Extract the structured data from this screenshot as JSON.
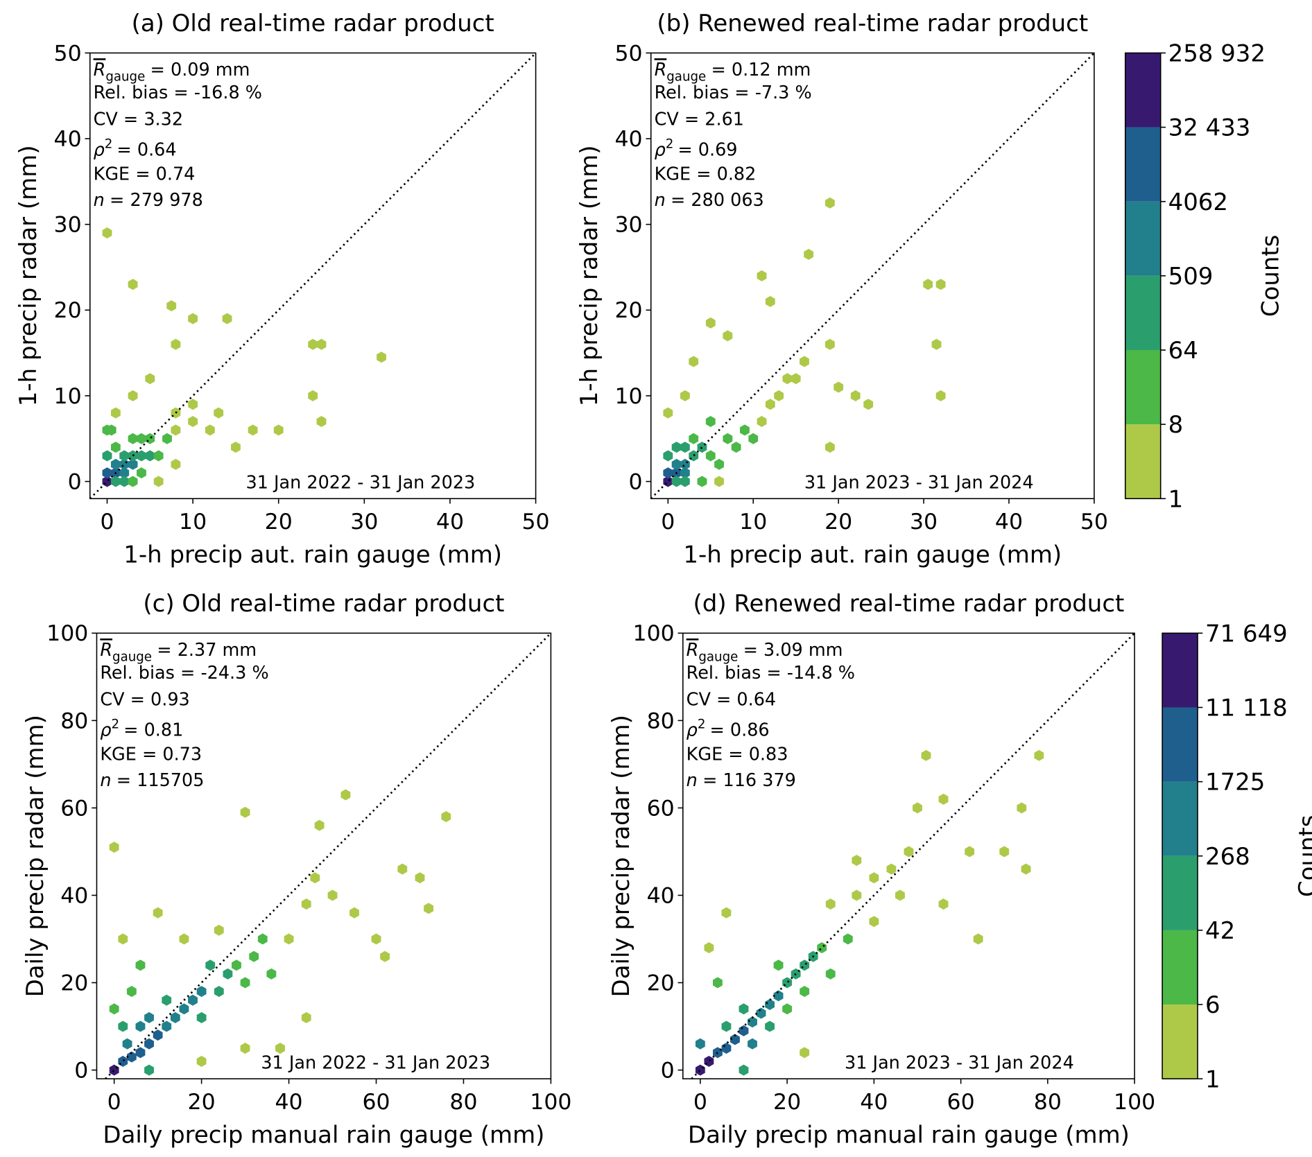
{
  "chart_data": [
    {
      "type": "hexbin",
      "title": "(a) Old real-time radar product",
      "xlabel": "1-h precip aut. rain gauge (mm)",
      "ylabel": "1-h precip radar (mm)",
      "xlim": [
        -2,
        50
      ],
      "ylim": [
        -2,
        50
      ],
      "xticks": [
        0,
        10,
        20,
        30,
        40,
        50
      ],
      "yticks": [
        0,
        10,
        20,
        30,
        40,
        50
      ],
      "period": "31 Jan 2022 - 31 Jan 2023",
      "stats": {
        "r_symbol": "R",
        "r_sub": "gauge",
        "r_value": "= 0.09 mm",
        "rel_bias": "Rel. bias = -16.8 %",
        "cv": "CV = 3.32",
        "rho_symbol": "ρ",
        "rho_sup": "2",
        "rho_value": "= 0.64",
        "kge": "KGE = 0.74",
        "n_symbol": "n",
        "n_value": "= 279 978"
      },
      "x": [
        0,
        1,
        0,
        1,
        2,
        2,
        3,
        0,
        2,
        3,
        4,
        5,
        1,
        2,
        3,
        4,
        6,
        5,
        4,
        0,
        7,
        8,
        8,
        10,
        1,
        3,
        5,
        10,
        12,
        13,
        15,
        17,
        20,
        24,
        25,
        32,
        0,
        3,
        7.5,
        10,
        14,
        8,
        24,
        25,
        6,
        8,
        0.5,
        1,
        3
      ],
      "y": [
        0,
        1,
        1,
        2,
        2,
        1,
        2,
        3,
        3,
        3,
        3,
        3,
        0,
        0,
        0,
        1,
        3,
        5,
        5,
        6,
        5,
        6,
        8,
        9,
        8,
        10,
        12,
        7,
        6,
        8,
        4,
        6,
        6,
        16,
        16,
        14.5,
        29,
        23,
        20.5,
        19,
        19,
        16,
        10,
        7,
        0,
        2,
        6,
        4,
        5
      ],
      "counts": [
        258932,
        30000,
        5000,
        4000,
        3000,
        2000,
        600,
        400,
        300,
        100,
        200,
        100,
        400,
        100,
        20,
        30,
        40,
        30,
        20,
        10,
        10,
        5,
        3,
        2,
        3,
        2,
        2,
        3,
        2,
        2,
        2,
        1,
        1,
        1,
        1,
        1,
        1,
        1,
        1,
        1,
        1,
        1,
        1,
        1,
        5,
        3,
        10,
        60,
        20
      ]
    },
    {
      "type": "hexbin",
      "title": "(b) Renewed real-time radar product",
      "xlabel": "1-h precip aut. rain gauge (mm)",
      "ylabel": "1-h precip radar (mm)",
      "xlim": [
        -2,
        50
      ],
      "ylim": [
        -2,
        50
      ],
      "xticks": [
        0,
        10,
        20,
        30,
        40,
        50
      ],
      "yticks": [
        0,
        10,
        20,
        30,
        40,
        50
      ],
      "period": "31 Jan 2023 - 31 Jan 2024",
      "stats": {
        "r_symbol": "R",
        "r_sub": "gauge",
        "r_value": "= 0.12 mm",
        "rel_bias": "Rel. bias = -7.3 %",
        "cv": "CV = 2.61",
        "rho_symbol": "ρ",
        "rho_sup": "2",
        "rho_value": "= 0.69",
        "kge": "KGE = 0.82",
        "n_symbol": "n",
        "n_value": "= 280 063"
      },
      "x": [
        0,
        1,
        0,
        1,
        2,
        2,
        3,
        0,
        1,
        2,
        3,
        4,
        5,
        1,
        2,
        4,
        6,
        7,
        8,
        9,
        10,
        11,
        12,
        13,
        14,
        0,
        2,
        3,
        5,
        7,
        11,
        12,
        16.5,
        19,
        19,
        20,
        22,
        23.5,
        30.5,
        32,
        31.5,
        32,
        19,
        16,
        6,
        5,
        15
      ],
      "y": [
        0,
        1,
        1,
        2,
        2,
        1,
        3,
        3,
        4,
        4,
        5,
        4,
        3,
        0,
        0,
        0,
        2,
        5,
        4,
        6,
        5,
        7,
        9,
        10,
        12,
        8,
        10,
        14,
        18.5,
        17,
        24,
        21,
        26.5,
        32.5,
        16,
        11,
        10,
        9,
        23,
        23,
        16,
        10,
        4,
        14,
        0,
        7,
        12
      ],
      "counts": [
        258932,
        30000,
        5000,
        3500,
        1500,
        2000,
        300,
        500,
        100,
        80,
        40,
        70,
        30,
        300,
        80,
        10,
        20,
        15,
        20,
        10,
        10,
        5,
        3,
        3,
        2,
        5,
        3,
        2,
        1,
        1,
        1,
        1,
        1,
        1,
        1,
        1,
        1,
        1,
        1,
        1,
        1,
        1,
        1,
        1,
        3,
        20,
        2
      ],
      "colorbar": {
        "label": "Counts",
        "ticks": [
          1,
          8,
          64,
          509,
          4062,
          {
            "value": 32433,
            "label": "32 433"
          },
          {
            "value": 258932,
            "label": "258 932"
          }
        ],
        "colors": [
          "#aec948",
          "#4bb848",
          "#2b9e6e",
          "#21808b",
          "#1f5f8e",
          "#371a70"
        ]
      }
    },
    {
      "type": "hexbin",
      "title": "(c) Old real-time radar product",
      "xlabel": "Daily precip manual rain gauge (mm)",
      "ylabel": "Daily precip radar (mm)",
      "xlim": [
        -4,
        100
      ],
      "ylim": [
        -2,
        100
      ],
      "xticks": [
        0,
        20,
        40,
        60,
        80,
        100
      ],
      "yticks": [
        0,
        20,
        40,
        60,
        80,
        100
      ],
      "period": "31 Jan 2022 - 31 Jan 2023",
      "stats": {
        "r_symbol": "R",
        "r_sub": "gauge",
        "r_value": "= 2.37 mm",
        "rel_bias": "Rel. bias = -24.3 %",
        "cv": "CV = 0.93",
        "rho_symbol": "ρ",
        "rho_sup": "2",
        "rho_value": "= 0.81",
        "kge": "KGE = 0.73",
        "n_symbol": "n",
        "n_value": "= 115705"
      },
      "x": [
        0,
        2,
        4,
        6,
        3,
        8,
        10,
        12,
        14,
        16,
        18,
        20,
        8,
        12,
        6,
        20,
        24,
        26,
        28,
        22,
        30,
        32,
        34,
        36,
        4,
        6,
        2,
        40,
        44,
        46,
        50,
        55,
        60,
        62,
        66,
        70,
        76,
        72,
        53,
        47,
        0,
        30,
        38,
        44,
        10,
        20,
        16,
        24,
        0,
        8,
        2,
        30
      ],
      "y": [
        0,
        2,
        3,
        4,
        6,
        6,
        8,
        10,
        12,
        14,
        16,
        18,
        12,
        16,
        10,
        12,
        18,
        22,
        24,
        24,
        20,
        26,
        30,
        22,
        18,
        24,
        30,
        30,
        38,
        44,
        40,
        36,
        30,
        26,
        46,
        44,
        58,
        37,
        63,
        56,
        51,
        59,
        5,
        12,
        36,
        2,
        30,
        32,
        14,
        0,
        10,
        5
      ],
      "counts": [
        71649,
        11000,
        5000,
        3000,
        1500,
        2000,
        1725,
        1200,
        700,
        500,
        300,
        268,
        300,
        200,
        400,
        150,
        100,
        60,
        40,
        42,
        30,
        20,
        8,
        10,
        20,
        6,
        3,
        3,
        2,
        1,
        1,
        1,
        1,
        1,
        1,
        1,
        1,
        1,
        1,
        1,
        1,
        1,
        2,
        2,
        1,
        5,
        3,
        4,
        6,
        100,
        50,
        2
      ]
    },
    {
      "type": "hexbin",
      "title": "(d) Renewed real-time radar product",
      "xlabel": "Daily precip manual rain gauge (mm)",
      "ylabel": "Daily precip radar (mm)",
      "xlim": [
        -4,
        100
      ],
      "ylim": [
        -2,
        100
      ],
      "xticks": [
        0,
        20,
        40,
        60,
        80,
        100
      ],
      "yticks": [
        0,
        20,
        40,
        60,
        80,
        100
      ],
      "period": "31 Jan 2023 - 31 Jan 2024",
      "stats": {
        "r_symbol": "R",
        "r_sub": "gauge",
        "r_value": "= 3.09 mm",
        "rel_bias": "Rel. bias = -14.8 %",
        "cv": "CV = 0.64",
        "rho_symbol": "ρ",
        "rho_sup": "2",
        "rho_value": "= 0.86",
        "kge": "KGE = 0.83",
        "n_symbol": "n",
        "n_value": "= 116 379"
      },
      "x": [
        0,
        2,
        4,
        6,
        8,
        10,
        12,
        14,
        16,
        18,
        20,
        22,
        24,
        26,
        28,
        6,
        12,
        10,
        16,
        20,
        24,
        18,
        30,
        34,
        36,
        40,
        44,
        50,
        52,
        56,
        48,
        62,
        70,
        74,
        78,
        75,
        64,
        56,
        4,
        6,
        2,
        24,
        40,
        46,
        30,
        36,
        10,
        0
      ],
      "y": [
        0,
        2,
        4,
        5,
        7,
        9,
        11,
        13,
        15,
        17,
        20,
        22,
        24,
        26,
        28,
        10,
        6,
        14,
        10,
        14,
        18,
        24,
        22,
        30,
        40,
        44,
        46,
        60,
        72,
        62,
        50,
        50,
        50,
        60,
        72,
        46,
        30,
        38,
        20,
        36,
        28,
        4,
        34,
        40,
        38,
        48,
        0,
        6
      ],
      "counts": [
        71649,
        11118,
        6000,
        2500,
        2000,
        1725,
        1000,
        800,
        400,
        268,
        200,
        100,
        60,
        42,
        20,
        200,
        300,
        60,
        100,
        40,
        30,
        20,
        10,
        6,
        3,
        2,
        1,
        1,
        1,
        1,
        1,
        1,
        1,
        1,
        1,
        1,
        1,
        1,
        6,
        1,
        2,
        3,
        3,
        2,
        4,
        3,
        100,
        500
      ],
      "colorbar": {
        "label": "Counts",
        "ticks": [
          1,
          6,
          42,
          268,
          1725,
          {
            "value": 11118,
            "label": "11 118"
          },
          {
            "value": 71649,
            "label": "71 649"
          }
        ],
        "colors": [
          "#aec948",
          "#4bb848",
          "#2b9e6e",
          "#21808b",
          "#1f5f8e",
          "#371a70"
        ]
      }
    }
  ]
}
